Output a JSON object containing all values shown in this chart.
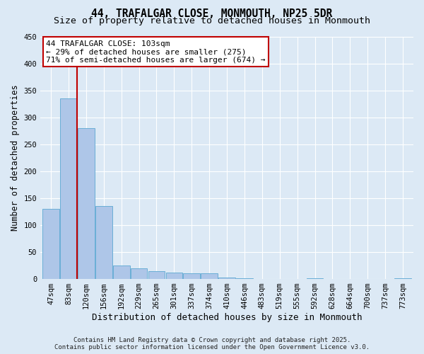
{
  "title_line1": "44, TRAFALGAR CLOSE, MONMOUTH, NP25 5DR",
  "title_line2": "Size of property relative to detached houses in Monmouth",
  "xlabel": "Distribution of detached houses by size in Monmouth",
  "ylabel": "Number of detached properties",
  "categories": [
    "47sqm",
    "83sqm",
    "120sqm",
    "156sqm",
    "192sqm",
    "229sqm",
    "265sqm",
    "301sqm",
    "337sqm",
    "374sqm",
    "410sqm",
    "446sqm",
    "483sqm",
    "519sqm",
    "555sqm",
    "592sqm",
    "628sqm",
    "664sqm",
    "700sqm",
    "737sqm",
    "773sqm"
  ],
  "values": [
    130,
    335,
    280,
    135,
    25,
    20,
    15,
    12,
    10,
    10,
    3,
    1,
    0,
    0,
    0,
    1,
    0,
    0,
    0,
    0,
    1
  ],
  "bar_color": "#aec6e8",
  "bar_edge_color": "#6aaed6",
  "background_color": "#dce9f5",
  "vline_x": 1.5,
  "vline_color": "#c00000",
  "annotation_text": "44 TRAFALGAR CLOSE: 103sqm\n← 29% of detached houses are smaller (275)\n71% of semi-detached houses are larger (674) →",
  "annotation_box_facecolor": "white",
  "annotation_box_edgecolor": "#c00000",
  "ylim": [
    0,
    450
  ],
  "yticks": [
    0,
    50,
    100,
    150,
    200,
    250,
    300,
    350,
    400,
    450
  ],
  "footer_line1": "Contains HM Land Registry data © Crown copyright and database right 2025.",
  "footer_line2": "Contains public sector information licensed under the Open Government Licence v3.0.",
  "title_fontsize": 10.5,
  "subtitle_fontsize": 9.5,
  "tick_fontsize": 7.5,
  "xlabel_fontsize": 9,
  "ylabel_fontsize": 8.5,
  "annotation_fontsize": 8,
  "footer_fontsize": 6.5
}
